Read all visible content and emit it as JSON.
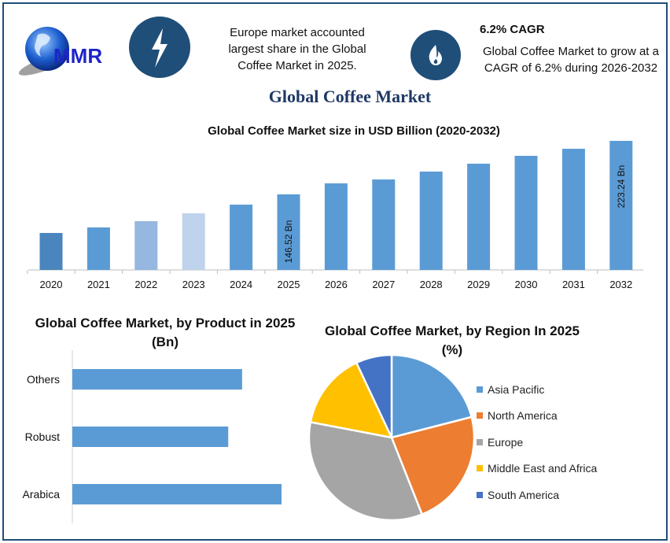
{
  "header": {
    "logo_text": "MMR",
    "icon_left": "lightning-bolt-icon",
    "icon_right": "flame-icon",
    "highlight_text": "Europe market accounted largest share in the Global Coffee Market in 2025.",
    "cagr_title": "6.2% CAGR",
    "cagr_text": "Global Coffee Market to grow at a CAGR of 6.2% during 2026-2032",
    "icon_color": "#1f4e79"
  },
  "main_title": "Global Coffee Market",
  "chart_data": [
    {
      "type": "bar",
      "title": "Global Coffee Market size in USD Billion (2020-2032)",
      "categories": [
        "2020",
        "2021",
        "2022",
        "2023",
        "2024",
        "2025",
        "2026",
        "2027",
        "2028",
        "2029",
        "2030",
        "2031",
        "2032"
      ],
      "values": [
        91.2,
        99.1,
        108.1,
        119.4,
        131.8,
        146.52,
        162.3,
        167.9,
        179.2,
        190.5,
        201.8,
        211.9,
        223.24
      ],
      "colors": [
        "#4a86bd",
        "#5b9bd5",
        "#95b7e0",
        "#c0d3ec",
        "#5b9bd5",
        "#5b9bd5",
        "#5b9bd5",
        "#5b9bd5",
        "#5b9bd5",
        "#5b9bd5",
        "#5b9bd5",
        "#5b9bd5",
        "#5b9bd5"
      ],
      "data_labels": {
        "2025": "146.52 Bn",
        "2032": "223.24 Bn"
      },
      "xlabel": "",
      "ylabel": "",
      "grid": false
    },
    {
      "type": "bar",
      "orientation": "horizontal",
      "title": "Global Coffee Market, by Product in 2025 (Bn)",
      "categories": [
        "Others",
        "Robust",
        "Arabica"
      ],
      "values": [
        46.5,
        42.7,
        57.3
      ],
      "color": "#5b9bd5",
      "grid": false
    },
    {
      "type": "pie",
      "title": "Global Coffee Market, by Region In 2025 (%)",
      "labels": [
        "Asia Pacific",
        "North America",
        "Europe",
        "Middle East and Africa",
        "South America"
      ],
      "values": [
        21,
        23,
        34,
        15,
        7
      ],
      "colors": [
        "#5b9bd5",
        "#ed7d31",
        "#a5a5a5",
        "#ffc000",
        "#4472c4"
      ],
      "legend": "right"
    }
  ]
}
